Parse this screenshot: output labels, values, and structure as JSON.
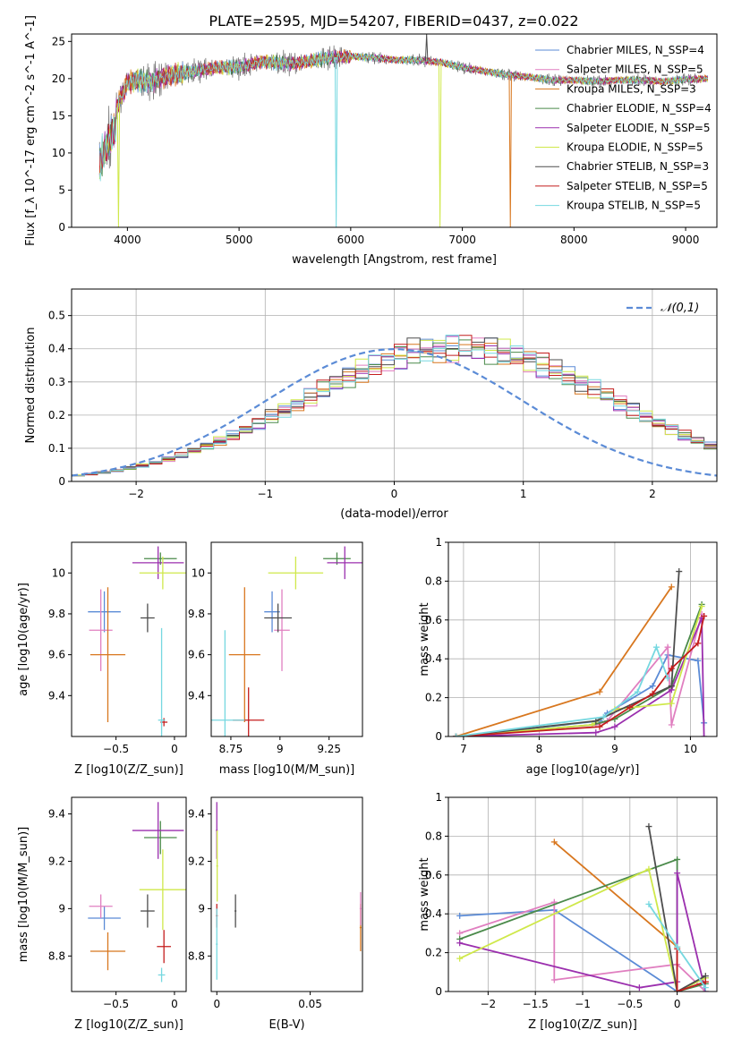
{
  "title": "PLATE=2595, MJD=54207, FIBERID=0437, z=0.022",
  "colors": {
    "chabrier_miles": "#5b8bd6",
    "salpeter_miles": "#e07fc0",
    "kroupa_miles": "#d8771f",
    "chabrier_elodie": "#4a8a4a",
    "salpeter_elodie": "#9b2fae",
    "kroupa_elodie": "#cfe84a",
    "chabrier_stelib": "#4d4d4d",
    "salpeter_stelib": "#c41d1d",
    "kroupa_stelib": "#76d8e0"
  },
  "chart_data": [
    {
      "type": "line",
      "title": "PLATE=2595, MJD=54207, FIBERID=0437, z=0.022",
      "xlabel": "wavelength [Angstrom, rest frame]",
      "ylabel": "Flux [f_λ 10^-17 erg cm^-2 s^-1 A^-1]",
      "xlim": [
        3500,
        9280
      ],
      "ylim": [
        0,
        26
      ],
      "xticks": [
        4000,
        5000,
        6000,
        7000,
        8000,
        9000
      ],
      "yticks": [
        0,
        5,
        10,
        15,
        20,
        25
      ],
      "legend_position": "top-right",
      "series": [
        {
          "name": "Chabrier MILES, N_SSP=4"
        },
        {
          "name": "Salpeter MILES, N_SSP=5"
        },
        {
          "name": "Kroupa MILES, N_SSP=3"
        },
        {
          "name": "Chabrier ELODIE, N_SSP=4"
        },
        {
          "name": "Salpeter ELODIE, N_SSP=5"
        },
        {
          "name": "Kroupa ELODIE, N_SSP=5"
        },
        {
          "name": "Chabrier STELIB, N_SSP=3"
        },
        {
          "name": "Salpeter STELIB, N_SSP=5"
        },
        {
          "name": "Kroupa STELIB, N_SSP=5"
        }
      ],
      "continuum": {
        "x": [
          3750,
          3800,
          3900,
          4000,
          4100,
          4200,
          4400,
          4600,
          4800,
          5000,
          5200,
          5500,
          5800,
          6000,
          6200,
          6400,
          6600,
          6800,
          7000,
          7200,
          7400,
          7600,
          7800,
          8000,
          8200,
          8400,
          8600,
          8800,
          9000,
          9200
        ],
        "y": [
          11,
          13,
          16,
          19.5,
          19.8,
          19.5,
          20.5,
          21,
          21.5,
          21.5,
          22.3,
          22,
          22.8,
          23,
          22.8,
          22.5,
          22.5,
          22.2,
          21.5,
          21,
          20.5,
          20.2,
          19.8,
          19.8,
          19.6,
          19.8,
          19.8,
          19.6,
          19.9,
          20
        ]
      },
      "spikes": [
        {
          "x": 3920,
          "y": 0,
          "series": 5
        },
        {
          "x": 5870,
          "y": 0,
          "series": 8
        },
        {
          "x": 6800,
          "y": 0,
          "series": 5
        },
        {
          "x": 7430,
          "y": 0,
          "series": 2
        },
        {
          "x": 6680,
          "y": 26,
          "series": 6
        }
      ]
    },
    {
      "type": "step",
      "xlabel": "(data-model)/error",
      "ylabel": "Normed distribution",
      "xlim": [
        -2.5,
        2.5
      ],
      "ylim": [
        0,
        0.58
      ],
      "xticks": [
        -2,
        -1,
        0,
        1,
        2
      ],
      "yticks": [
        0,
        0.1,
        0.2,
        0.3,
        0.4,
        0.5
      ],
      "grid": true,
      "legend": "𝒩(0,1)",
      "legend_position": "top-right",
      "bin_width": 0.1,
      "bin_start": -2.5,
      "base": [
        0.018,
        0.022,
        0.027,
        0.033,
        0.04,
        0.048,
        0.057,
        0.068,
        0.079,
        0.092,
        0.107,
        0.122,
        0.139,
        0.157,
        0.176,
        0.195,
        0.215,
        0.235,
        0.256,
        0.276,
        0.296,
        0.315,
        0.333,
        0.35,
        0.365,
        0.378,
        0.389,
        0.397,
        0.4,
        0.4,
        0.4,
        0.4,
        0.397,
        0.389,
        0.378,
        0.365,
        0.35,
        0.333,
        0.315,
        0.296,
        0.276,
        0.256,
        0.235,
        0.215,
        0.195,
        0.176,
        0.157,
        0.139,
        0.122,
        0.107
      ]
    },
    {
      "type": "errorbar",
      "xlabel": "Z [log10(Z/Z_sun)]",
      "ylabel": "age  [log10(age/yr)]",
      "xlim": [
        -0.88,
        0.1
      ],
      "ylim": [
        9.2,
        10.15
      ],
      "xticks": [
        -0.5,
        0.0
      ],
      "yticks": [
        9.4,
        9.6,
        9.8,
        10.0
      ],
      "points": [
        {
          "s": 0,
          "x": -0.6,
          "xe": 0.14,
          "y": 9.81,
          "ye": 0.1
        },
        {
          "s": 1,
          "x": -0.63,
          "xe": 0.1,
          "y": 9.72,
          "ye": 0.2
        },
        {
          "s": 2,
          "x": -0.57,
          "xe": 0.15,
          "y": 9.6,
          "ye": 0.33
        },
        {
          "s": 3,
          "x": -0.12,
          "xe": 0.14,
          "y": 10.07,
          "ye": 0.03
        },
        {
          "s": 4,
          "x": -0.14,
          "xe": 0.22,
          "y": 10.05,
          "ye": 0.08
        },
        {
          "s": 5,
          "x": -0.1,
          "xe": 0.2,
          "y": 10.0,
          "ye": 0.08
        },
        {
          "s": 6,
          "x": -0.23,
          "xe": 0.06,
          "y": 9.78,
          "ye": 0.07
        },
        {
          "s": 7,
          "x": -0.09,
          "xe": 0.03,
          "y": 9.27,
          "ye": 0.02
        },
        {
          "s": 8,
          "x": -0.11,
          "xe": 0.03,
          "y": 9.28,
          "ye": 0.45
        }
      ]
    },
    {
      "type": "errorbar",
      "xlabel": "mass [log10(M/M_sun)]",
      "ylabel": "",
      "xlim": [
        8.65,
        9.42
      ],
      "ylim": [
        9.2,
        10.15
      ],
      "xticks": [
        8.75,
        9.0,
        9.25
      ],
      "yticks": [
        9.4,
        9.6,
        9.8,
        10.0
      ],
      "points": [
        {
          "s": 0,
          "x": 8.96,
          "xe": 0.04,
          "y": 9.81,
          "ye": 0.1
        },
        {
          "s": 1,
          "x": 9.01,
          "xe": 0.04,
          "y": 9.72,
          "ye": 0.2
        },
        {
          "s": 2,
          "x": 8.82,
          "xe": 0.08,
          "y": 9.6,
          "ye": 0.33
        },
        {
          "s": 3,
          "x": 9.29,
          "xe": 0.07,
          "y": 10.07,
          "ye": 0.03
        },
        {
          "s": 4,
          "x": 9.33,
          "xe": 0.09,
          "y": 10.05,
          "ye": 0.08
        },
        {
          "s": 5,
          "x": 9.08,
          "xe": 0.14,
          "y": 10.0,
          "ye": 0.08
        },
        {
          "s": 6,
          "x": 8.99,
          "xe": 0.07,
          "y": 9.78,
          "ye": 0.07
        },
        {
          "s": 7,
          "x": 8.84,
          "xe": 0.08,
          "y": 9.28,
          "ye": 0.16
        },
        {
          "s": 8,
          "x": 8.72,
          "xe": 0.1,
          "y": 9.28,
          "ye": 0.44
        }
      ]
    },
    {
      "type": "line",
      "xlabel": "age  [log10(age/yr)]",
      "ylabel": "mass weight",
      "xlim": [
        6.8,
        10.35
      ],
      "ylim": [
        0,
        1.0
      ],
      "xticks": [
        7,
        8,
        9,
        10
      ],
      "yticks": [
        0.0,
        0.2,
        0.4,
        0.6,
        0.8,
        1.0
      ],
      "grid": true,
      "series": [
        {
          "s": 0,
          "x": [
            6.9,
            8.8,
            8.9,
            9.5,
            9.7,
            10.1,
            10.18
          ],
          "y": [
            0.0,
            0.08,
            0.12,
            0.26,
            0.42,
            0.39,
            0.07
          ]
        },
        {
          "s": 1,
          "x": [
            6.9,
            8.75,
            8.9,
            9.7,
            9.75,
            10.15
          ],
          "y": [
            0.0,
            0.06,
            0.08,
            0.46,
            0.06,
            0.63
          ]
        },
        {
          "s": 2,
          "x": [
            6.9,
            8.8,
            9.75
          ],
          "y": [
            0.0,
            0.23,
            0.77
          ]
        },
        {
          "s": 3,
          "x": [
            6.9,
            8.7,
            9.0,
            9.75,
            10.15
          ],
          "y": [
            0.0,
            0.06,
            0.09,
            0.26,
            0.68
          ]
        },
        {
          "s": 4,
          "x": [
            6.9,
            8.75,
            9.0,
            9.75,
            10.15,
            10.18
          ],
          "y": [
            0.0,
            0.02,
            0.05,
            0.24,
            0.61,
            0.0
          ]
        },
        {
          "s": 5,
          "x": [
            6.9,
            8.7,
            9.0,
            9.75,
            10.15
          ],
          "y": [
            0.0,
            0.06,
            0.14,
            0.17,
            0.67
          ]
        },
        {
          "s": 6,
          "x": [
            6.9,
            8.75,
            9.75,
            9.85
          ],
          "y": [
            0.0,
            0.08,
            0.26,
            0.85
          ]
        },
        {
          "s": 7,
          "x": [
            6.9,
            8.8,
            9.2,
            9.5,
            9.75,
            10.1,
            10.18
          ],
          "y": [
            0.0,
            0.05,
            0.15,
            0.22,
            0.35,
            0.48,
            0.62
          ]
        },
        {
          "s": 8,
          "x": [
            6.9,
            8.85,
            9.3,
            9.55,
            9.7
          ],
          "y": [
            0.0,
            0.1,
            0.23,
            0.46,
            0.3
          ]
        }
      ]
    },
    {
      "type": "errorbar",
      "xlabel": "Z [log10(Z/Z_sun)]",
      "ylabel": "mass [log10(M/M_sun)]",
      "xlim": [
        -0.88,
        0.1
      ],
      "ylim": [
        8.65,
        9.47
      ],
      "xticks": [
        -0.5,
        0.0
      ],
      "yticks": [
        8.8,
        9.0,
        9.2,
        9.4
      ],
      "points": [
        {
          "s": 0,
          "x": -0.6,
          "xe": 0.14,
          "y": 8.96,
          "ye": 0.05
        },
        {
          "s": 1,
          "x": -0.63,
          "xe": 0.1,
          "y": 9.01,
          "ye": 0.05
        },
        {
          "s": 2,
          "x": -0.57,
          "xe": 0.15,
          "y": 8.82,
          "ye": 0.08
        },
        {
          "s": 3,
          "x": -0.12,
          "xe": 0.14,
          "y": 9.3,
          "ye": 0.07
        },
        {
          "s": 4,
          "x": -0.14,
          "xe": 0.22,
          "y": 9.33,
          "ye": 0.12
        },
        {
          "s": 5,
          "x": -0.1,
          "xe": 0.2,
          "y": 9.08,
          "ye": 0.17
        },
        {
          "s": 6,
          "x": -0.23,
          "xe": 0.06,
          "y": 8.99,
          "ye": 0.07
        },
        {
          "s": 7,
          "x": -0.09,
          "xe": 0.06,
          "y": 8.84,
          "ye": 0.07
        },
        {
          "s": 8,
          "x": -0.11,
          "xe": 0.03,
          "y": 8.72,
          "ye": 0.03
        }
      ]
    },
    {
      "type": "errorbar",
      "xlabel": "E(B-V)",
      "ylabel": "",
      "xlim": [
        -0.003,
        0.078
      ],
      "ylim": [
        8.65,
        9.47
      ],
      "xticks": [
        0.0,
        0.05
      ],
      "yticks": [
        8.8,
        9.0,
        9.2,
        9.4
      ],
      "points": [
        {
          "s": 4,
          "x": 0.0,
          "xe": 0.0005,
          "y": 9.33,
          "ye": 0.12
        },
        {
          "s": 5,
          "x": 0.0002,
          "xe": 0.0005,
          "y": 9.18,
          "ye": 0.15
        },
        {
          "s": 7,
          "x": 0.0,
          "xe": 0.0005,
          "y": 8.97,
          "ye": 0.05
        },
        {
          "s": 8,
          "x": 0.0,
          "xe": 0.0005,
          "y": 8.85,
          "ye": 0.15
        },
        {
          "s": 6,
          "x": 0.01,
          "xe": 0.0005,
          "y": 8.99,
          "ye": 0.07
        },
        {
          "s": 2,
          "x": 0.077,
          "xe": 0.0005,
          "y": 8.92,
          "ye": 0.1
        },
        {
          "s": 1,
          "x": 0.077,
          "xe": 0.0005,
          "y": 9.0,
          "ye": 0.07
        }
      ]
    },
    {
      "type": "line",
      "xlabel": "Z [log10(Z/Z_sun)]",
      "ylabel": "mass weight",
      "xlim": [
        -2.42,
        0.42
      ],
      "ylim": [
        0,
        1.0
      ],
      "xticks": [
        -2.0,
        -1.5,
        -1.0,
        -0.5,
        0.0
      ],
      "yticks": [
        0.0,
        0.2,
        0.4,
        0.6,
        0.8,
        1.0
      ],
      "grid": true,
      "series": [
        {
          "s": 0,
          "x": [
            -2.3,
            -1.3,
            0.0,
            0.3
          ],
          "y": [
            0.39,
            0.42,
            0.0,
            0.07
          ]
        },
        {
          "s": 1,
          "x": [
            -2.3,
            -1.3,
            -1.3,
            0.0,
            0.3
          ],
          "y": [
            0.3,
            0.46,
            0.06,
            0.14,
            0.0
          ]
        },
        {
          "s": 2,
          "x": [
            -1.3,
            0.0,
            0.0,
            0.3
          ],
          "y": [
            0.77,
            0.23,
            0.0,
            0.05
          ]
        },
        {
          "s": 3,
          "x": [
            -2.3,
            0.0,
            0.0,
            0.3
          ],
          "y": [
            0.27,
            0.68,
            0.0,
            0.04
          ]
        },
        {
          "s": 4,
          "x": [
            -2.3,
            -0.4,
            0.0,
            0.0,
            0.3
          ],
          "y": [
            0.25,
            0.02,
            0.05,
            0.61,
            0.0
          ]
        },
        {
          "s": 5,
          "x": [
            -2.3,
            -0.3,
            0.0,
            0.3
          ],
          "y": [
            0.17,
            0.63,
            0.0,
            0.07
          ]
        },
        {
          "s": 6,
          "x": [
            -0.3,
            0.0,
            0.3
          ],
          "y": [
            0.85,
            0.0,
            0.08
          ]
        },
        {
          "s": 7,
          "x": [
            0.0,
            0.0,
            0.3
          ],
          "y": [
            0.22,
            0.0,
            0.05
          ]
        },
        {
          "s": 8,
          "x": [
            -0.3,
            0.0,
            0.3
          ],
          "y": [
            0.45,
            0.23,
            0.02
          ]
        }
      ]
    }
  ]
}
